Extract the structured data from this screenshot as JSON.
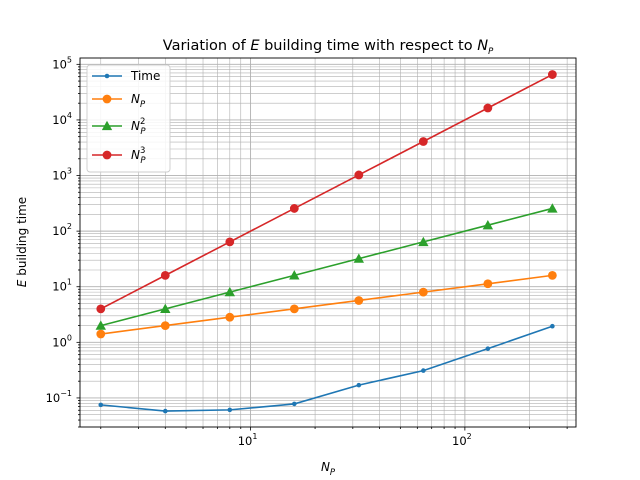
{
  "chart_data": {
    "type": "line",
    "title": {
      "prefix": "Variation of ",
      "italic_a": "E",
      "middle": " building time with respect to ",
      "italic_b": "N",
      "sub_b": "P"
    },
    "xlabel": {
      "italic": "N",
      "sub": "P"
    },
    "ylabel": {
      "italic": "E",
      "rest": " building time"
    },
    "x_scale": "log",
    "y_scale": "log",
    "xlim": [
      1.6,
      330
    ],
    "ylim": [
      0.03,
      130000
    ],
    "grid": "both-major-minor",
    "legend_position": "top-left",
    "x_ticks": [
      {
        "value": 10,
        "base": "10",
        "exp": "1"
      },
      {
        "value": 100,
        "base": "10",
        "exp": "2"
      }
    ],
    "y_ticks": [
      {
        "value": 0.1,
        "base": "10",
        "exp": "−1"
      },
      {
        "value": 1,
        "base": "10",
        "exp": "0"
      },
      {
        "value": 10,
        "base": "10",
        "exp": "1"
      },
      {
        "value": 100,
        "base": "10",
        "exp": "2"
      },
      {
        "value": 1000,
        "base": "10",
        "exp": "3"
      },
      {
        "value": 10000,
        "base": "10",
        "exp": "4"
      },
      {
        "value": 100000,
        "base": "10",
        "exp": "5"
      }
    ],
    "x": [
      2,
      4,
      8,
      16,
      32,
      64,
      128,
      256
    ],
    "series": [
      {
        "name": "Time",
        "color": "#1f77b4",
        "marker": "dot",
        "values": [
          0.075,
          0.058,
          0.061,
          0.078,
          0.17,
          0.31,
          0.77,
          1.95
        ]
      },
      {
        "name": "N_P",
        "color": "#ff7f0e",
        "marker": "circle",
        "values": [
          1.41,
          2,
          2.83,
          4,
          5.66,
          8,
          11.3,
          16
        ]
      },
      {
        "name": "N_P^2",
        "color": "#2ca02c",
        "marker": "triangle",
        "values": [
          2,
          4,
          8,
          16,
          32,
          64,
          128,
          256
        ]
      },
      {
        "name": "N_P^3",
        "color": "#d62728",
        "marker": "circle",
        "values": [
          4,
          16,
          64,
          256,
          1024,
          4096,
          16384,
          65536
        ]
      }
    ],
    "legend": [
      {
        "base": "Time",
        "sub": "",
        "sup": ""
      },
      {
        "base": "N",
        "sub": "P",
        "sup": ""
      },
      {
        "base": "N",
        "sub": "P",
        "sup": "2"
      },
      {
        "base": "N",
        "sub": "P",
        "sup": "3"
      }
    ]
  }
}
